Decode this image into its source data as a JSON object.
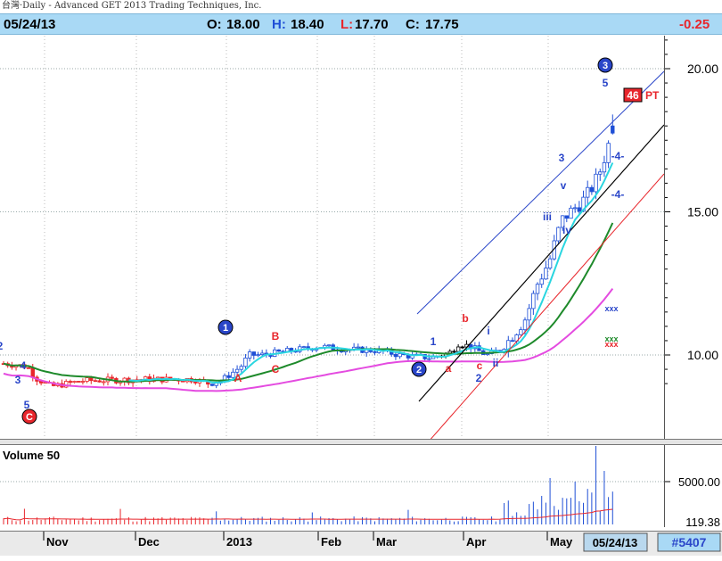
{
  "header": {
    "title": "台灣·Daily - Advanced GET 2013 Trading Techniques, Inc.",
    "date": "05/24/13",
    "open_label": "O:",
    "open": "18.00",
    "high_label": "H:",
    "high": "18.40",
    "low_label": "L:",
    "low": "17.70",
    "close_label": "C:",
    "close": "17.75",
    "change": "-0.25"
  },
  "colors": {
    "header_bg": "#a9d9f5",
    "up": "#ffffff",
    "down": "#1f4fd6",
    "red": "#e8262c",
    "cyan": "#2ad6e0",
    "green": "#1e8a2b",
    "magenta": "#e44be0",
    "blue": "#2a46c9"
  },
  "chart_data": {
    "type": "candlestick",
    "price_axis": {
      "ticks": [
        "20.00",
        "15.00",
        "10.00"
      ],
      "values": [
        20,
        15,
        10
      ]
    },
    "volume_axis": {
      "ticks": [
        "5000.00",
        "119.38"
      ]
    },
    "volume_label": "Volume 50",
    "months": [
      "Nov",
      "Dec",
      "2013",
      "Feb",
      "Mar",
      "Apr",
      "May"
    ],
    "current_date": "05/24/13",
    "symbol_badge": "#5407",
    "pt_label": "46",
    "pt_suffix": "PT",
    "wave_labels": [
      {
        "t": "2",
        "c": "blue"
      },
      {
        "t": "4",
        "c": "blue"
      },
      {
        "t": "3",
        "c": "blue"
      },
      {
        "t": "5",
        "c": "blue"
      },
      {
        "t": "C",
        "c": "red-circle"
      },
      {
        "t": "1",
        "c": "blue-circle"
      },
      {
        "t": "A",
        "c": "red"
      },
      {
        "t": "B",
        "c": "red"
      },
      {
        "t": "C",
        "c": "red"
      },
      {
        "t": "2",
        "c": "blue-circle"
      },
      {
        "t": "1",
        "c": "blue"
      },
      {
        "t": "a",
        "c": "red"
      },
      {
        "t": "b",
        "c": "red"
      },
      {
        "t": "c",
        "c": "red"
      },
      {
        "t": "2",
        "c": "blue"
      },
      {
        "t": "i",
        "c": "blue"
      },
      {
        "t": "ii",
        "c": "blue"
      },
      {
        "t": "iii",
        "c": "blue"
      },
      {
        "t": "iv",
        "c": "blue"
      },
      {
        "t": "v",
        "c": "blue"
      },
      {
        "t": "3",
        "c": "blue"
      },
      {
        "t": "-4-",
        "c": "blue"
      },
      {
        "t": "-4-",
        "c": "blue"
      },
      {
        "t": "5",
        "c": "blue"
      },
      {
        "t": "3",
        "c": "blue-circle"
      }
    ],
    "ohlc_approx": "Oct 2012–May 2013 daily candles, ~9.5 rising to 18.4"
  }
}
